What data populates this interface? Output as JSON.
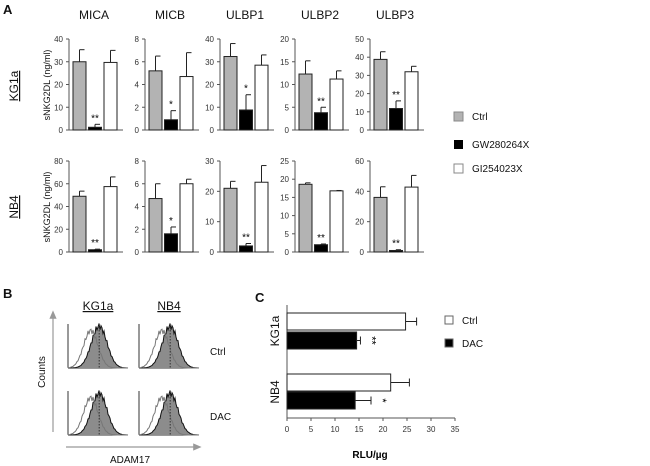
{
  "panel_labels": {
    "a": "A",
    "b": "B",
    "c": "C"
  },
  "colors": {
    "ctrl": "#b3b3b3",
    "gw": "#000000",
    "gi": "#ffffff",
    "axis": "#555555",
    "hist_fill": "#8c8c8c"
  },
  "panel_a": {
    "row_labels": [
      "KG1a",
      "NB4"
    ],
    "ylabel": "sNKG2DL (ng/ml)",
    "legend": [
      "Ctrl",
      "GW280264X",
      "GI254023X"
    ]
  },
  "chart_data": [
    {
      "type": "bar",
      "panel": "A",
      "row": "KG1a",
      "title": "MICA",
      "categories": [
        "Ctrl",
        "GW280264X",
        "GI254023X"
      ],
      "values": [
        30,
        1.2,
        29.7
      ],
      "error_upper": [
        35.3,
        2.5,
        35
      ],
      "ylim": [
        0,
        40
      ],
      "yticks": [
        0,
        10,
        20,
        30,
        40
      ],
      "significance": [
        "",
        "**",
        ""
      ],
      "ylabel": "sNKG2DL (ng/ml)"
    },
    {
      "type": "bar",
      "panel": "A",
      "row": "KG1a",
      "title": "MICB",
      "categories": [
        "Ctrl",
        "GW280264X",
        "GI254023X"
      ],
      "values": [
        5.2,
        0.9,
        4.7
      ],
      "error_upper": [
        6.5,
        1.7,
        6.8
      ],
      "ylim": [
        0,
        8
      ],
      "yticks": [
        0,
        2,
        4,
        6,
        8
      ],
      "significance": [
        "",
        "*",
        ""
      ]
    },
    {
      "type": "bar",
      "panel": "A",
      "row": "KG1a",
      "title": "ULBP1",
      "categories": [
        "Ctrl",
        "GW280264X",
        "GI254023X"
      ],
      "values": [
        32.3,
        8.8,
        28.5
      ],
      "error_upper": [
        38,
        15.5,
        33
      ],
      "ylim": [
        0,
        40
      ],
      "yticks": [
        0,
        10,
        20,
        30,
        40
      ],
      "significance": [
        "",
        "*",
        ""
      ]
    },
    {
      "type": "bar",
      "panel": "A",
      "row": "KG1a",
      "title": "ULBP2",
      "categories": [
        "Ctrl",
        "GW280264X",
        "GI254023X"
      ],
      "values": [
        12.3,
        3.8,
        11.2
      ],
      "error_upper": [
        15.2,
        5,
        13
      ],
      "ylim": [
        0,
        20
      ],
      "yticks": [
        0,
        5,
        10,
        15,
        20
      ],
      "significance": [
        "",
        "**",
        ""
      ]
    },
    {
      "type": "bar",
      "panel": "A",
      "row": "KG1a",
      "title": "ULBP3",
      "categories": [
        "Ctrl",
        "GW280264X",
        "GI254023X"
      ],
      "values": [
        38.8,
        11.8,
        32
      ],
      "error_upper": [
        43,
        16,
        35
      ],
      "ylim": [
        0,
        50
      ],
      "yticks": [
        0,
        10,
        20,
        30,
        40,
        50
      ],
      "significance": [
        "",
        "**",
        ""
      ]
    },
    {
      "type": "bar",
      "panel": "A",
      "row": "NB4",
      "title": "MICA",
      "categories": [
        "Ctrl",
        "GW280264X",
        "GI254023X"
      ],
      "values": [
        49,
        2,
        57.5
      ],
      "error_upper": [
        53.5,
        2.5,
        66
      ],
      "ylim": [
        0,
        80
      ],
      "yticks": [
        0,
        20,
        40,
        60,
        80
      ],
      "significance": [
        "",
        "**",
        ""
      ],
      "ylabel": "sNKG2DL (ng/ml)"
    },
    {
      "type": "bar",
      "panel": "A",
      "row": "NB4",
      "title": "MICB",
      "categories": [
        "Ctrl",
        "GW280264X",
        "GI254023X"
      ],
      "values": [
        4.7,
        1.6,
        6
      ],
      "error_upper": [
        6,
        2.2,
        6.4
      ],
      "ylim": [
        0,
        8
      ],
      "yticks": [
        0,
        2,
        4,
        6,
        8
      ],
      "significance": [
        "",
        "*",
        ""
      ]
    },
    {
      "type": "bar",
      "panel": "A",
      "row": "NB4",
      "title": "ULBP1",
      "categories": [
        "Ctrl",
        "GW280264X",
        "GI254023X"
      ],
      "values": [
        21,
        2,
        23
      ],
      "error_upper": [
        23.3,
        2.8,
        28.5
      ],
      "ylim": [
        0,
        30
      ],
      "yticks": [
        0,
        10,
        20,
        30
      ],
      "significance": [
        "",
        "**",
        ""
      ]
    },
    {
      "type": "bar",
      "panel": "A",
      "row": "NB4",
      "title": "ULBP2",
      "categories": [
        "Ctrl",
        "GW280264X",
        "GI254023X"
      ],
      "values": [
        18.6,
        2,
        16.8
      ],
      "error_upper": [
        19,
        2.2,
        16.9
      ],
      "ylim": [
        0,
        25
      ],
      "yticks": [
        0,
        5,
        10,
        15,
        20,
        25
      ],
      "significance": [
        "",
        "**",
        ""
      ]
    },
    {
      "type": "bar",
      "panel": "A",
      "row": "NB4",
      "title": "ULBP3",
      "categories": [
        "Ctrl",
        "GW280264X",
        "GI254023X"
      ],
      "values": [
        36,
        1,
        42.8
      ],
      "error_upper": [
        43,
        1.5,
        50.5
      ],
      "ylim": [
        0,
        60
      ],
      "yticks": [
        0,
        20,
        40,
        60
      ],
      "significance": [
        "",
        "**",
        ""
      ]
    },
    {
      "type": "bar",
      "orientation": "horizontal",
      "panel": "C",
      "categories": [
        "KG1a",
        "NB4"
      ],
      "series": [
        {
          "name": "Ctrl",
          "values": [
            24.7,
            21.6
          ],
          "error_upper": [
            27,
            25.5
          ]
        },
        {
          "name": "DAC",
          "values": [
            14.5,
            14.2
          ],
          "error_upper": [
            15.3,
            17.5
          ],
          "significance": [
            "**",
            "*"
          ]
        }
      ],
      "xlabel": "RLU/µg",
      "xlim": [
        0,
        35
      ],
      "xticks": [
        0,
        5,
        10,
        15,
        20,
        25,
        30,
        35
      ],
      "legend": [
        "Ctrl",
        "DAC"
      ],
      "legend_position": "top-right"
    }
  ],
  "panel_b": {
    "columns": [
      "KG1a",
      "NB4"
    ],
    "rows": [
      "Ctrl",
      "DAC"
    ],
    "ylabel": "Counts",
    "xlabel": "ADAM17"
  }
}
